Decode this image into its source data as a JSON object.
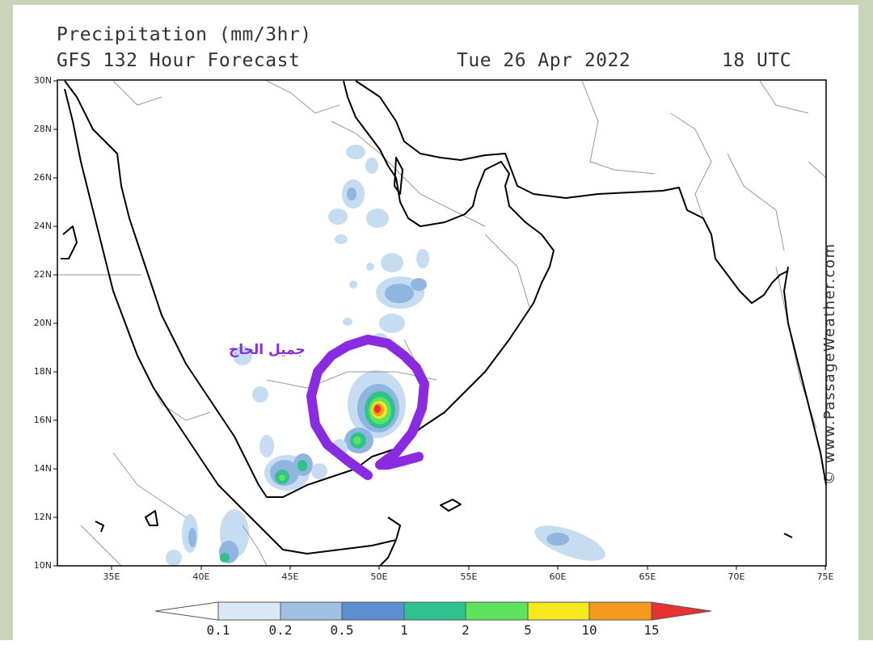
{
  "header": {
    "line1": "Precipitation (mm/3hr)",
    "line2": "GFS 132 Hour Forecast",
    "date": "Tue 26 Apr 2022",
    "time": "18 UTC"
  },
  "axes": {
    "lat_labels": [
      "30N",
      "28N",
      "26N",
      "24N",
      "22N",
      "20N",
      "18N",
      "16N",
      "14N",
      "12N",
      "10N"
    ],
    "lon_labels": [
      "35E",
      "40E",
      "45E",
      "50E",
      "55E",
      "60E",
      "65E",
      "70E",
      "75E"
    ]
  },
  "copyright": "© www.PassageWeather.com",
  "colorbar": {
    "labels": [
      "0.1",
      "0.2",
      "0.5",
      "1",
      "2",
      "5",
      "10",
      "15"
    ],
    "colors": [
      "#ffffff",
      "#dbe8f5",
      "#9fbfe3",
      "#5d8fd0",
      "#2fc28f",
      "#5ee35e",
      "#f5e81e",
      "#f59a1e",
      "#e83232"
    ]
  },
  "annotation": {
    "text": "جميل الحاج",
    "color": "#8a2be2"
  },
  "precip_colors": {
    "light": "#c6dcf0",
    "medium": "#8fb5e0",
    "blue": "#5d8fd0",
    "teal": "#2fc28f",
    "green": "#5ee35e",
    "yellow": "#f5e81e",
    "orange": "#f59a1e",
    "red": "#e83232"
  }
}
